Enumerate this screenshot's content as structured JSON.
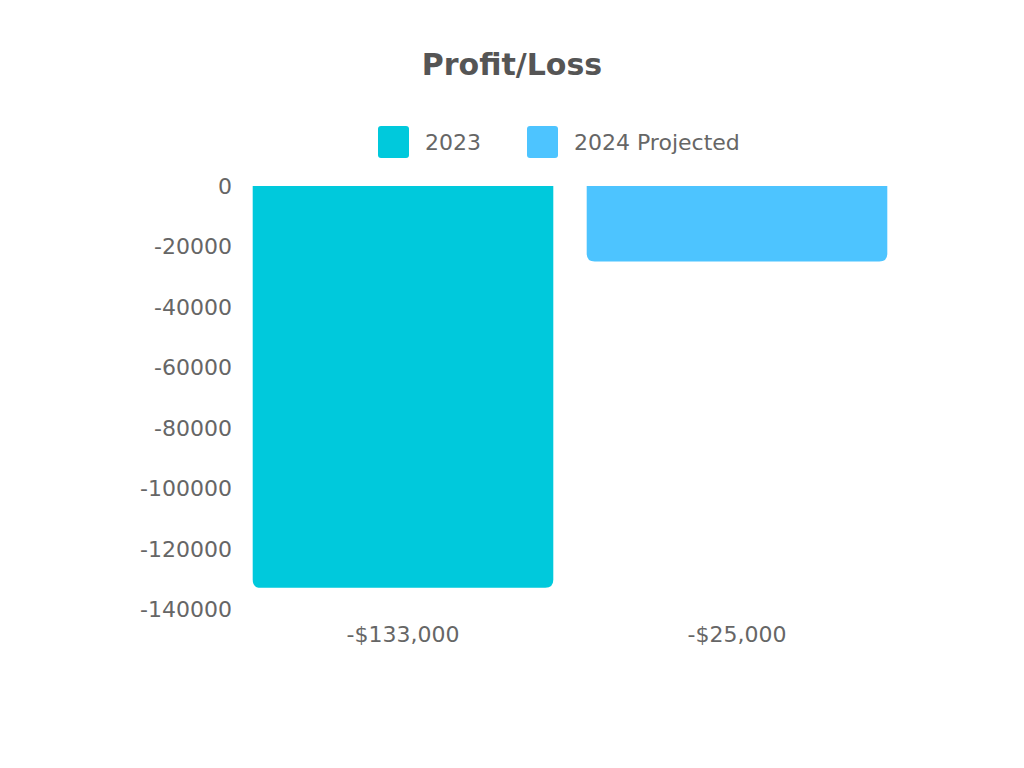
{
  "chart_data": {
    "type": "bar",
    "title": "Profit/Loss",
    "categories": [
      "-$133,000",
      "-$25,000"
    ],
    "series": [
      {
        "name": "2023",
        "color": "#00c9dc",
        "values": [
          -133000,
          null
        ]
      },
      {
        "name": "2024 Projected",
        "color": "#4dc4ff",
        "values": [
          null,
          -25000
        ]
      }
    ],
    "ylim": [
      -140000,
      0
    ],
    "yticks": [
      0,
      -20000,
      -40000,
      -60000,
      -80000,
      -100000,
      -120000,
      -140000
    ],
    "grid": false,
    "legend": "top"
  }
}
